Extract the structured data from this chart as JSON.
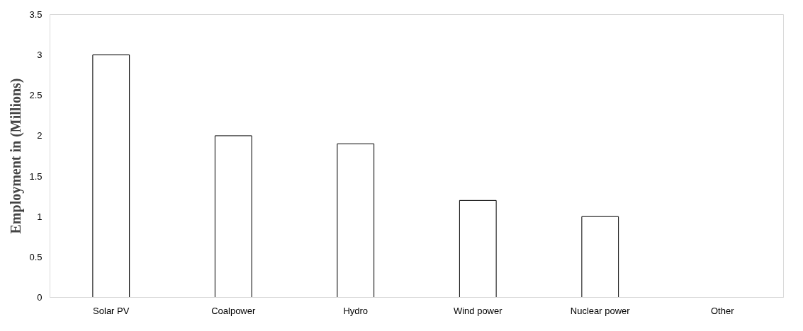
{
  "chart_data": {
    "type": "bar",
    "ylabel": "Employment in (Millions)",
    "categories": [
      "Solar PV",
      "Coalpower",
      "Hydro",
      "Wind power",
      "Nuclear power",
      "Other"
    ],
    "values": [
      3,
      2,
      1.9,
      1.2,
      1,
      null
    ],
    "color": "#ffffff",
    "ylim": [
      0,
      3.5
    ],
    "yticks": [
      0,
      0.5,
      1,
      1.5,
      2,
      2.5,
      3,
      3.5
    ],
    "grid": false
  }
}
